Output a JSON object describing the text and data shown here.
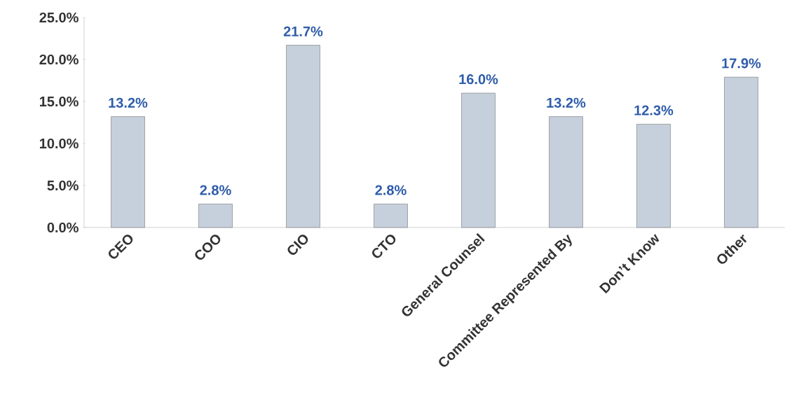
{
  "chart_data": {
    "type": "bar",
    "categories": [
      "CEO",
      "COO",
      "CIO",
      "CTO",
      "General Counsel",
      "Committee Represented By",
      "Don’t Know",
      "Other"
    ],
    "values": [
      13.2,
      2.8,
      21.7,
      2.8,
      16.0,
      13.2,
      12.3,
      17.9
    ],
    "value_labels": [
      "13.2%",
      "2.8%",
      "21.7%",
      "2.8%",
      "16.0%",
      "13.2%",
      "12.3%",
      "17.9%"
    ],
    "color": "#c6d0dc",
    "ylim": [
      0,
      25
    ],
    "yticks": [
      {
        "value": 0,
        "label": "0.0%"
      },
      {
        "value": 5,
        "label": "5.0%"
      },
      {
        "value": 10,
        "label": "10.0%"
      },
      {
        "value": 15,
        "label": "15.0%"
      },
      {
        "value": 20,
        "label": "20.0%"
      },
      {
        "value": 25,
        "label": "25.0%"
      }
    ]
  }
}
